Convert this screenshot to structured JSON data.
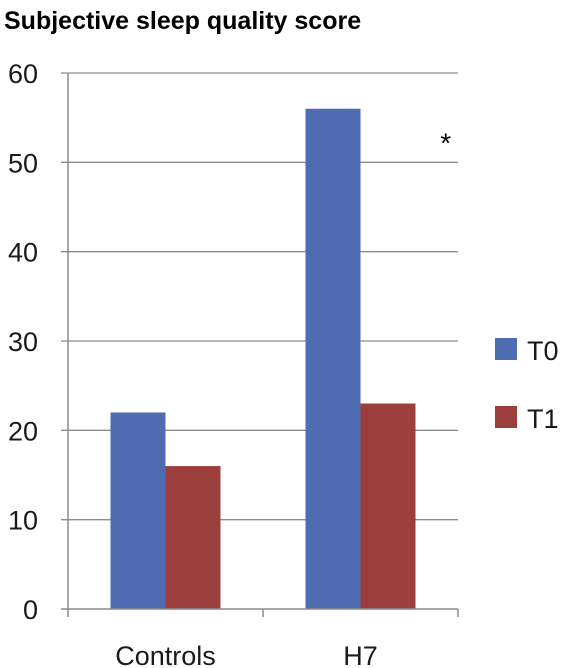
{
  "chart_data": {
    "type": "bar",
    "title": "Subjective sleep quality score",
    "categories": [
      "Controls",
      "H7"
    ],
    "series": [
      {
        "name": "T0",
        "values": [
          22,
          56
        ],
        "color": "#4f6bb1"
      },
      {
        "name": "T1",
        "values": [
          16,
          23
        ],
        "color": "#9c3f3c"
      }
    ],
    "ylim": [
      0,
      60
    ],
    "yticks": [
      0,
      10,
      20,
      30,
      40,
      50,
      60
    ],
    "grid": true,
    "legend": "right",
    "annotations": [
      {
        "text": "*",
        "category": "H7",
        "y": 52
      }
    ]
  }
}
